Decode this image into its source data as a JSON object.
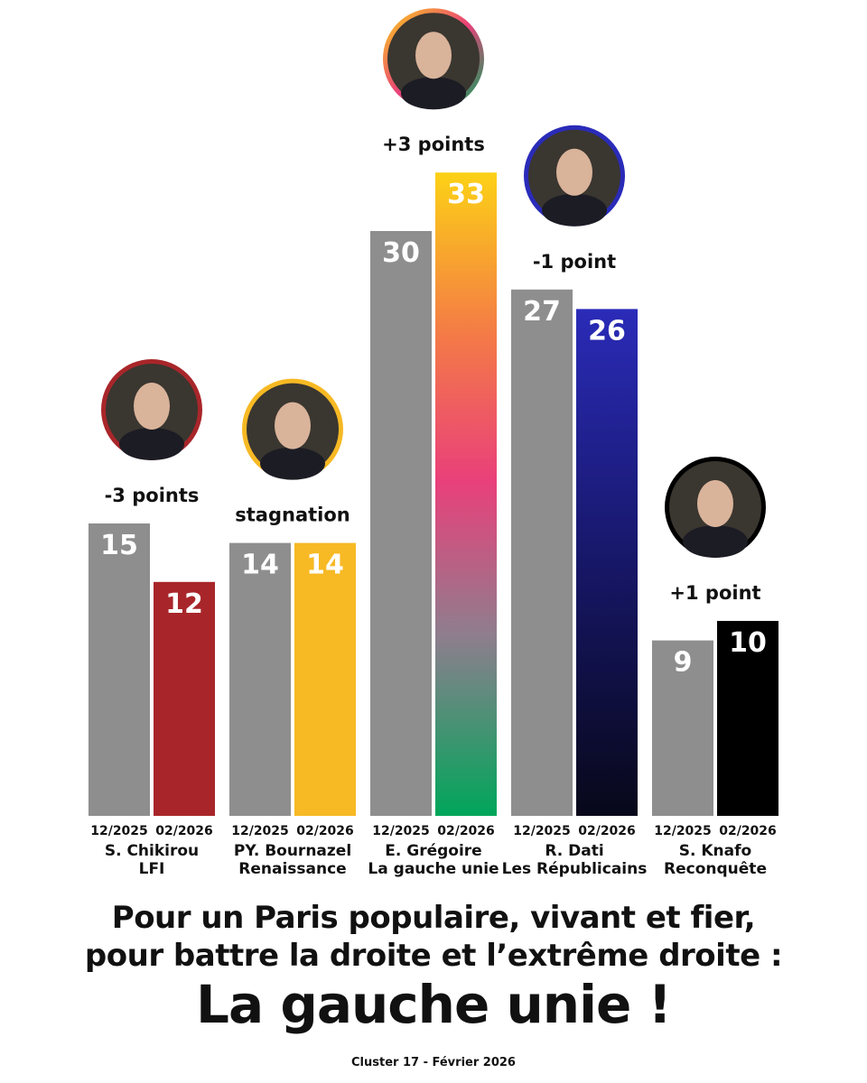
{
  "chart_data": {
    "type": "bar",
    "ylim": [
      0,
      33
    ],
    "grid": false,
    "legend": "none",
    "period_labels": [
      "12/2025",
      "02/2026"
    ],
    "candidates": [
      {
        "name": "S. Chikirou",
        "party": "LFI",
        "values": [
          15,
          12
        ],
        "change": "-3 points",
        "color": "#a8262a"
      },
      {
        "name": "PY. Bournazel",
        "party": "Renaissance",
        "values": [
          14,
          14
        ],
        "change": "stagnation",
        "color": "#f7b924"
      },
      {
        "name": "E. Grégoire",
        "party": "La gauche unie",
        "values": [
          30,
          33
        ],
        "change": "+3 points",
        "color": "gradient"
      },
      {
        "name": "R. Dati",
        "party": "Les Républicains",
        "values": [
          27,
          26
        ],
        "change": "-1 point",
        "color": "#2a2bb8"
      },
      {
        "name": "S. Knafo",
        "party": "Reconquête",
        "values": [
          9,
          10
        ],
        "change": "+1 point",
        "color": "#000000"
      }
    ]
  },
  "colors": {
    "previous_bar": "#8e8e8e",
    "gradient_top": "#fcd116",
    "gradient_mid": "#e9407a",
    "gradient_bottom": "#00a65a",
    "dati_top": "#2a2bb8",
    "dati_bottom": "#08081a"
  },
  "footer": {
    "line1": "Pour un Paris populaire, vivant et fier,",
    "line2": "pour battre la droite et l’extrême droite :",
    "headline": "La gauche unie !",
    "source": "Cluster 17 - Février 2026"
  }
}
